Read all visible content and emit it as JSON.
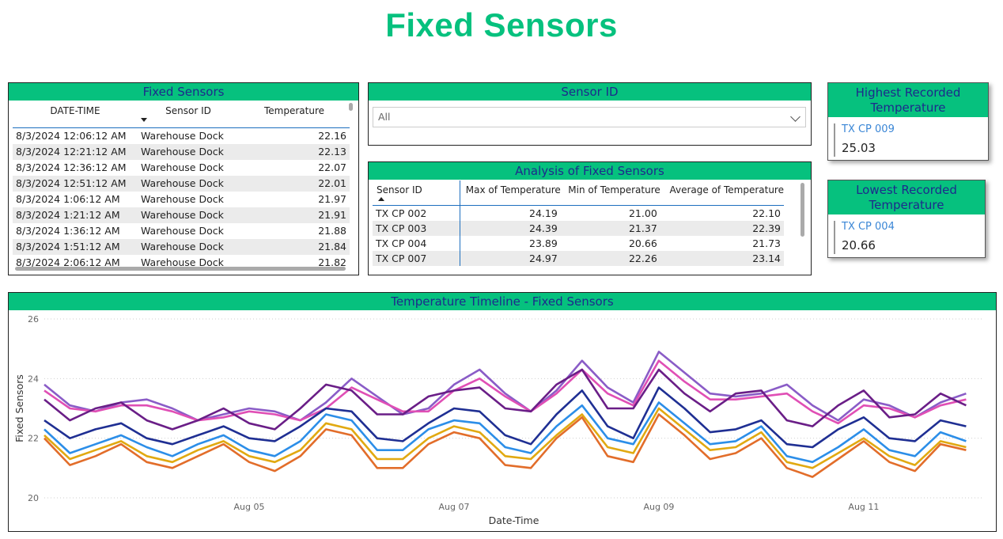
{
  "page_title": "Fixed Sensors",
  "fixed_table": {
    "title": "Fixed Sensors",
    "columns": [
      "DATE-TIME",
      "Sensor ID",
      "Temperature"
    ],
    "rows": [
      [
        "8/3/2024 12:06:12 AM",
        "Warehouse Dock",
        "22.16"
      ],
      [
        "8/3/2024 12:21:12 AM",
        "Warehouse Dock",
        "22.13"
      ],
      [
        "8/3/2024 12:36:12 AM",
        "Warehouse Dock",
        "22.07"
      ],
      [
        "8/3/2024 12:51:12 AM",
        "Warehouse Dock",
        "22.01"
      ],
      [
        "8/3/2024 1:06:12 AM",
        "Warehouse Dock",
        "21.97"
      ],
      [
        "8/3/2024 1:21:12 AM",
        "Warehouse Dock",
        "21.91"
      ],
      [
        "8/3/2024 1:36:12 AM",
        "Warehouse Dock",
        "21.88"
      ],
      [
        "8/3/2024 1:51:12 AM",
        "Warehouse Dock",
        "21.84"
      ],
      [
        "8/3/2024 2:06:12 AM",
        "Warehouse Dock",
        "21.82"
      ]
    ]
  },
  "slicer": {
    "title": "Sensor ID",
    "selected": "All",
    "chevron_icon": "chevron-down-icon"
  },
  "analysis_table": {
    "title": "Analysis of Fixed Sensors",
    "columns": [
      "Sensor ID",
      "Max of Temperature",
      "Min of Temperature",
      "Average of Temperature"
    ],
    "rows": [
      [
        "TX CP 002",
        "24.19",
        "21.00",
        "22.10"
      ],
      [
        "TX CP 003",
        "24.39",
        "21.37",
        "22.39"
      ],
      [
        "TX CP 004",
        "23.89",
        "20.66",
        "21.73"
      ],
      [
        "TX CP 007",
        "24.97",
        "22.26",
        "23.14"
      ]
    ]
  },
  "highest_card": {
    "title": "Highest Recorded Temperature",
    "sensor": "TX CP 009",
    "value": "25.03"
  },
  "lowest_card": {
    "title": "Lowest Recorded Temperature",
    "sensor": "TX CP 004",
    "value": "20.66"
  },
  "chart_data": {
    "type": "line",
    "title": "Temperature Timeline - Fixed Sensors",
    "xlabel": "Date-Time",
    "ylabel": "Fixed Sensors",
    "x_ticks": [
      "Aug 05",
      "Aug 07",
      "Aug 09",
      "Aug 11"
    ],
    "y_ticks": [
      "20",
      "22",
      "24",
      "26"
    ],
    "xlim": [
      "2024-08-03T00:00",
      "2024-08-12T04:00"
    ],
    "ylim": [
      20,
      26
    ],
    "grid": true,
    "x": [
      "2024-08-03T00:00",
      "2024-08-03T06:00",
      "2024-08-03T12:00",
      "2024-08-03T18:00",
      "2024-08-04T00:00",
      "2024-08-04T06:00",
      "2024-08-04T12:00",
      "2024-08-04T18:00",
      "2024-08-05T00:00",
      "2024-08-05T06:00",
      "2024-08-05T12:00",
      "2024-08-05T18:00",
      "2024-08-06T00:00",
      "2024-08-06T06:00",
      "2024-08-06T12:00",
      "2024-08-06T18:00",
      "2024-08-07T00:00",
      "2024-08-07T06:00",
      "2024-08-07T12:00",
      "2024-08-07T18:00",
      "2024-08-08T00:00",
      "2024-08-08T06:00",
      "2024-08-08T12:00",
      "2024-08-08T18:00",
      "2024-08-09T00:00",
      "2024-08-09T06:00",
      "2024-08-09T12:00",
      "2024-08-09T18:00",
      "2024-08-10T00:00",
      "2024-08-10T06:00",
      "2024-08-10T12:00",
      "2024-08-10T18:00",
      "2024-08-11T00:00",
      "2024-08-11T06:00",
      "2024-08-11T12:00",
      "2024-08-11T18:00",
      "2024-08-12T00:00"
    ],
    "series": [
      {
        "color": "#8a5cc7",
        "values": [
          23.8,
          23.1,
          22.9,
          23.2,
          23.3,
          23.0,
          22.6,
          22.8,
          23.0,
          22.9,
          22.6,
          23.2,
          24.0,
          23.4,
          22.8,
          23.0,
          23.8,
          24.3,
          23.5,
          22.9,
          23.6,
          24.6,
          23.7,
          23.2,
          24.9,
          24.2,
          23.5,
          23.4,
          23.5,
          23.8,
          23.1,
          22.6,
          23.3,
          23.1,
          22.7,
          23.2,
          23.5
        ]
      },
      {
        "color": "#e04fb5",
        "values": [
          23.6,
          23.0,
          22.9,
          23.1,
          23.1,
          22.9,
          22.6,
          22.7,
          22.9,
          22.8,
          22.6,
          23.0,
          23.7,
          23.3,
          22.9,
          22.9,
          23.6,
          24.0,
          23.4,
          22.9,
          23.5,
          24.3,
          23.5,
          23.1,
          24.6,
          23.9,
          23.3,
          23.3,
          23.4,
          23.5,
          22.9,
          22.5,
          23.1,
          23.0,
          22.7,
          23.1,
          23.3
        ]
      },
      {
        "color": "#6a1e87",
        "values": [
          23.3,
          22.6,
          23.0,
          23.2,
          22.6,
          22.3,
          22.6,
          23.0,
          22.5,
          22.3,
          23.0,
          23.8,
          23.6,
          22.8,
          22.8,
          23.4,
          23.6,
          23.7,
          23.0,
          22.9,
          23.8,
          24.3,
          23.0,
          23.0,
          24.3,
          23.5,
          22.9,
          23.5,
          23.6,
          22.6,
          22.4,
          23.1,
          23.6,
          22.7,
          22.8,
          23.5,
          23.1
        ]
      },
      {
        "color": "#1f2f93",
        "values": [
          22.6,
          22.0,
          22.3,
          22.5,
          22.0,
          21.8,
          22.1,
          22.4,
          22.0,
          21.9,
          22.4,
          23.0,
          22.9,
          22.0,
          21.9,
          22.5,
          23.0,
          22.9,
          22.1,
          21.8,
          22.8,
          23.6,
          22.4,
          22.0,
          23.7,
          23.0,
          22.2,
          22.3,
          22.6,
          21.8,
          21.7,
          22.3,
          22.7,
          22.0,
          21.9,
          22.6,
          22.4
        ]
      },
      {
        "color": "#2c8ee8",
        "values": [
          22.3,
          21.5,
          21.8,
          22.1,
          21.7,
          21.4,
          21.8,
          22.1,
          21.6,
          21.4,
          21.9,
          22.8,
          22.6,
          21.6,
          21.6,
          22.3,
          22.6,
          22.5,
          21.7,
          21.5,
          22.4,
          23.1,
          22.0,
          21.8,
          23.2,
          22.5,
          21.8,
          21.9,
          22.4,
          21.4,
          21.2,
          21.7,
          22.3,
          21.6,
          21.4,
          22.2,
          21.9
        ]
      },
      {
        "color": "#e1a911",
        "values": [
          22.1,
          21.3,
          21.6,
          21.9,
          21.4,
          21.2,
          21.6,
          21.9,
          21.4,
          21.2,
          21.6,
          22.5,
          22.3,
          21.3,
          21.3,
          22.0,
          22.4,
          22.2,
          21.4,
          21.3,
          22.1,
          22.8,
          21.7,
          21.5,
          23.0,
          22.3,
          21.6,
          21.7,
          22.2,
          21.2,
          21.0,
          21.5,
          22.0,
          21.4,
          21.1,
          21.9,
          21.7
        ]
      },
      {
        "color": "#e26d2a",
        "values": [
          22.0,
          21.1,
          21.4,
          21.8,
          21.2,
          21.0,
          21.4,
          21.8,
          21.2,
          20.9,
          21.4,
          22.3,
          22.1,
          21.0,
          21.0,
          21.8,
          22.2,
          22.0,
          21.1,
          21.0,
          22.0,
          22.7,
          21.4,
          21.2,
          22.8,
          22.1,
          21.3,
          21.5,
          22.0,
          21.0,
          20.7,
          21.3,
          21.9,
          21.2,
          20.9,
          21.8,
          21.6
        ]
      }
    ]
  }
}
